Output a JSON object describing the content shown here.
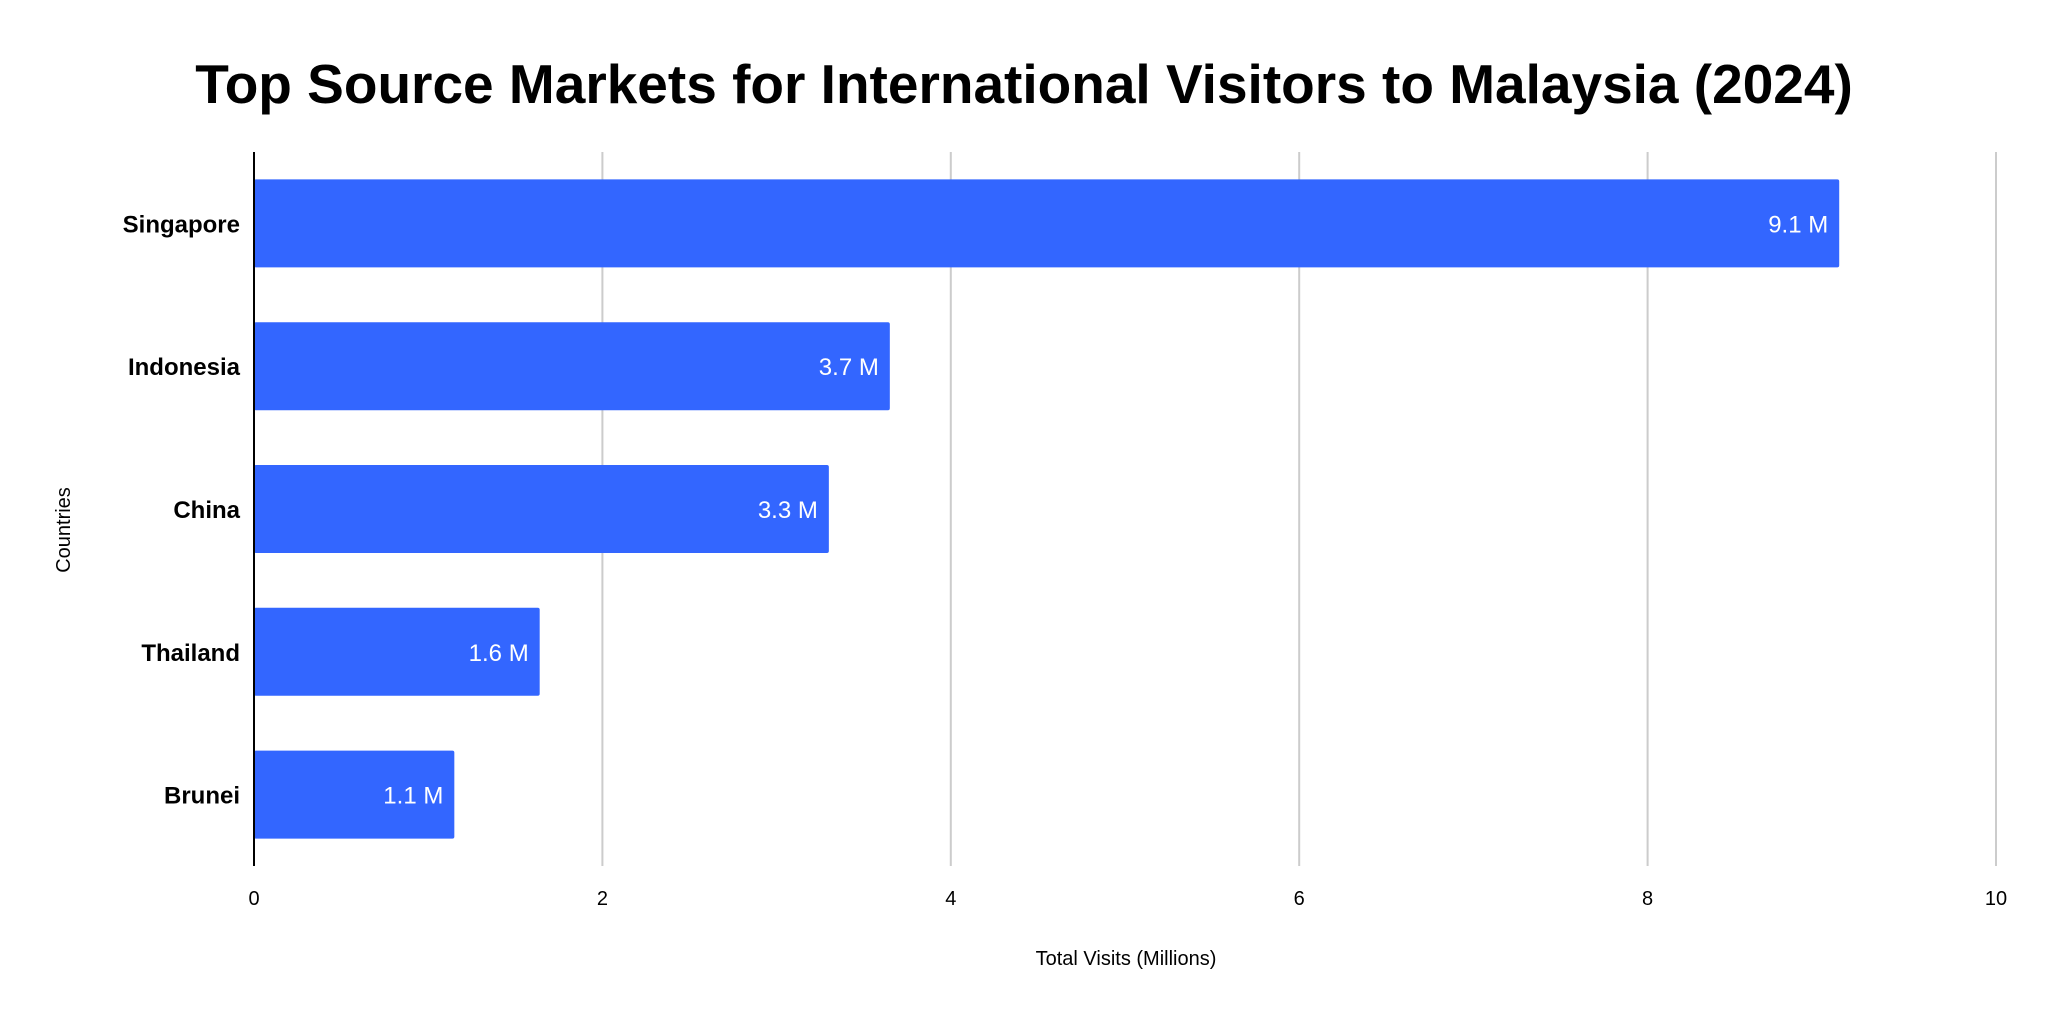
{
  "chart_data": {
    "type": "bar",
    "orientation": "horizontal",
    "title": "Top Source Markets for International Visitors to Malaysia (2024)",
    "xlabel": "Total Visits (Millions)",
    "ylabel": "Countries",
    "categories": [
      "Singapore",
      "Indonesia",
      "China",
      "Thailand",
      "Brunei"
    ],
    "values": [
      9.1,
      3.65,
      3.3,
      1.64,
      1.15
    ],
    "data_labels": [
      "9.1 M",
      "3.7 M",
      "3.3 M",
      "1.6 M",
      "1.1 M"
    ],
    "xlim": [
      0,
      10
    ],
    "xticks": [
      "0",
      "2",
      "4",
      "6",
      "8",
      "10"
    ],
    "grid": true,
    "legend": "none",
    "colors": {
      "bar": "#3366ff"
    }
  }
}
